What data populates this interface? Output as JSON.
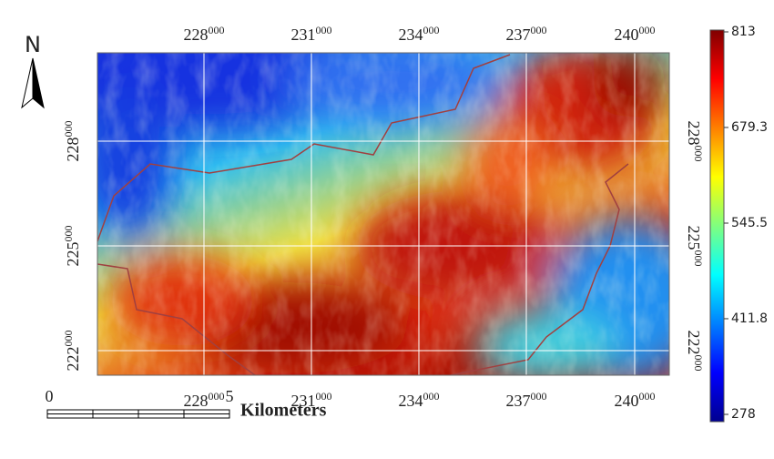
{
  "north": "N",
  "x_labels": [
    {
      "major": "228",
      "minor": "000"
    },
    {
      "major": "231",
      "minor": "000"
    },
    {
      "major": "234",
      "minor": "000"
    },
    {
      "major": "237",
      "minor": "000"
    },
    {
      "major": "240",
      "minor": "000"
    }
  ],
  "y_labels": [
    {
      "major": "228",
      "minor": "000"
    },
    {
      "major": "225",
      "minor": "000"
    },
    {
      "major": "222",
      "minor": "000"
    }
  ],
  "colorbar": {
    "lim": [
      278,
      813
    ],
    "ticks": [
      813,
      679.3,
      545.5,
      411.8,
      278
    ]
  },
  "scale_bar": {
    "start": "0",
    "end": "5",
    "unit": "Kilometers"
  }
}
